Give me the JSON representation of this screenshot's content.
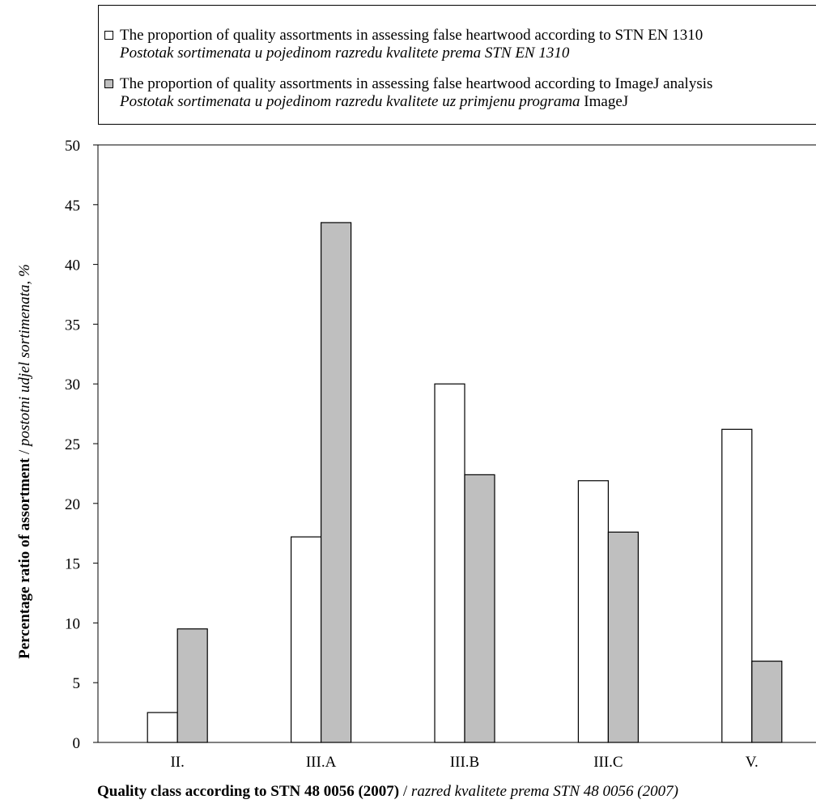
{
  "chart_data": {
    "type": "bar",
    "categories": [
      "II.",
      "III.A",
      "III.B",
      "III.C",
      "V."
    ],
    "series": [
      {
        "name": "The proportion of quality assortments in assessing false heartwood according to STN EN 1310",
        "name_hr": "Postotak sortimenata u pojedinom razredu kvalitete prema STN EN 1310",
        "values": [
          2.5,
          17.2,
          30.0,
          21.9,
          26.2
        ],
        "color": "#ffffff"
      },
      {
        "name": "The proportion of quality assortments in assessing false heartwood according to ImageJ analysis",
        "name_hr_prefix": "Postotak sortimenata u pojedinom razredu kvalitete uz primjenu programa",
        "name_hr_suffix": "ImageJ",
        "values": [
          9.5,
          43.5,
          22.4,
          17.6,
          6.8
        ],
        "color": "#bfbfbf"
      }
    ],
    "ylim": [
      0,
      50
    ],
    "yticks": [
      "0",
      "5",
      "10",
      "15",
      "20",
      "25",
      "30",
      "35",
      "40",
      "45",
      "50"
    ],
    "ylabel": {
      "main": "Percentage ratio of assortment",
      "sep": " / ",
      "alt": "postotni udjel sortimenata, %"
    },
    "xlabel": {
      "main": "Quality class according to STN 48 0056 (2007)",
      "sep": " / ",
      "alt": "razred kvalitete prema STN 48 0056 (2007)"
    },
    "legend_position": "top",
    "grid": false,
    "stroke_color": "#000000"
  }
}
